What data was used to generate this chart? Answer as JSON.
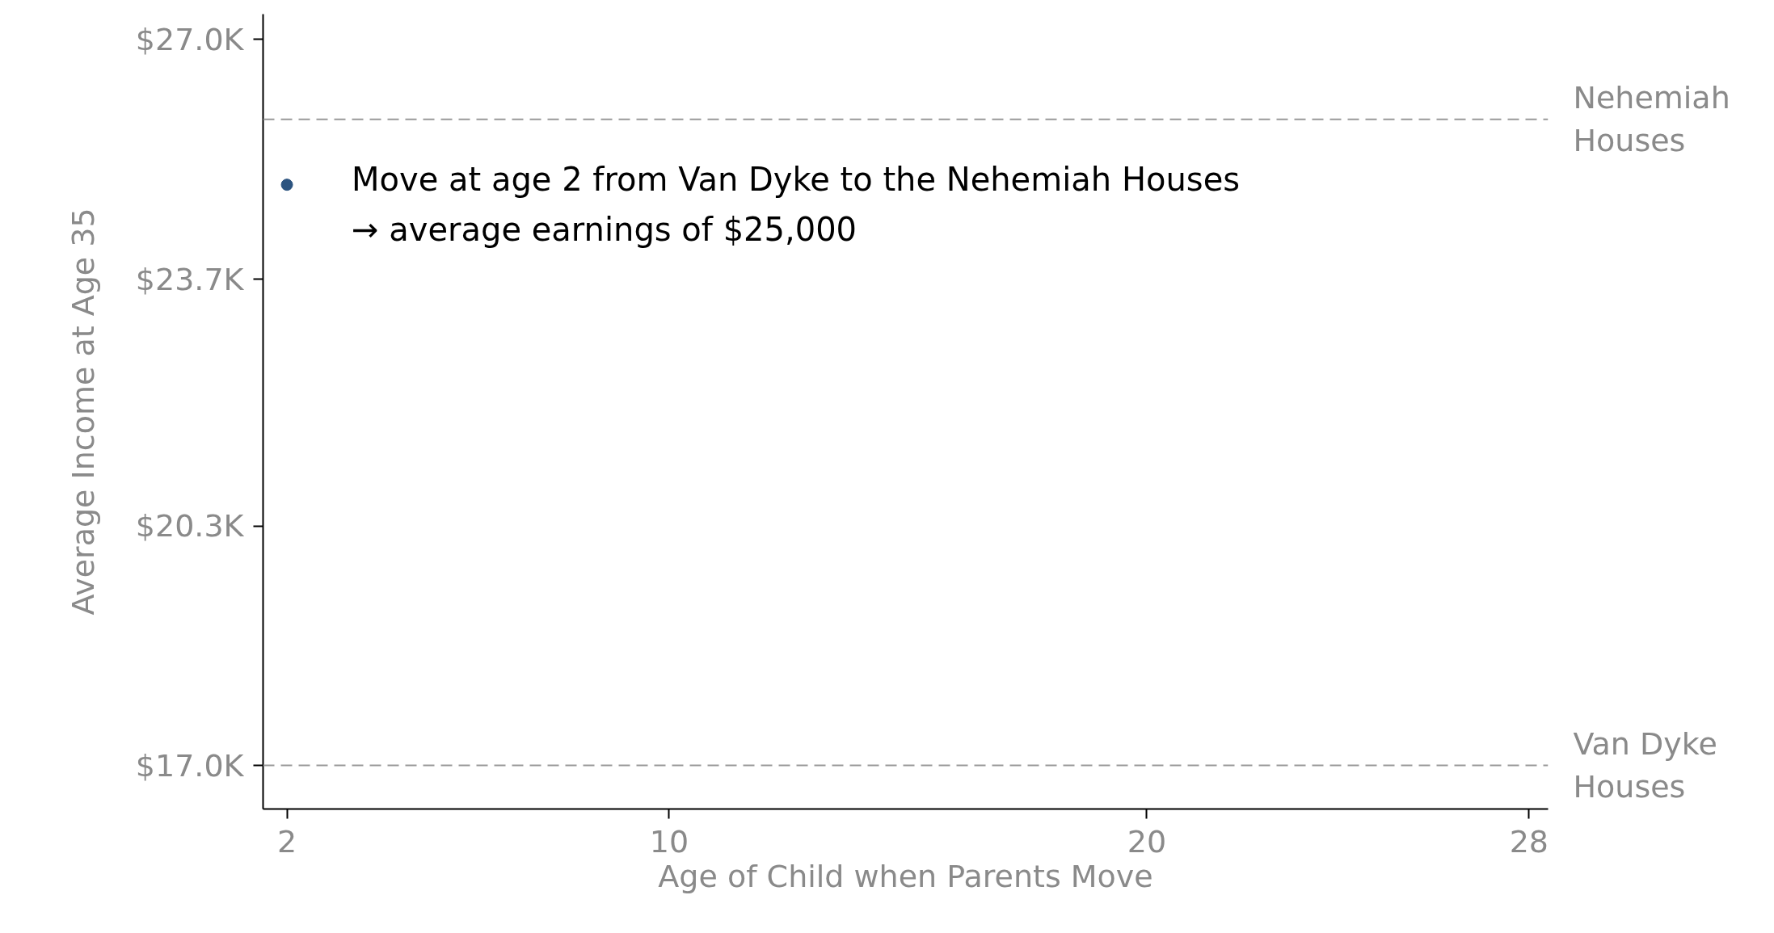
{
  "chart_data": {
    "type": "scatter",
    "xlabel": "Age of Child when Parents Move",
    "ylabel": "Average Income at Age 35",
    "x": [
      2
    ],
    "series": [
      {
        "color": "#2c5480",
        "values": [
          25000
        ]
      }
    ],
    "xlim": [
      1.5,
      28.4
    ],
    "xticks": [
      2,
      10,
      20,
      28
    ],
    "ylim": [
      16400,
      27350
    ],
    "yticks": [
      {
        "value": 17000,
        "label": "$17.0K"
      },
      {
        "value": 20300,
        "label": "$20.3K"
      },
      {
        "value": 23700,
        "label": "$23.7K"
      },
      {
        "value": 27000,
        "label": "$27.0K"
      }
    ],
    "ref_lines": [
      {
        "axis": "y",
        "value": 25900,
        "label": "Nehemiah Houses",
        "color": "#999999",
        "line_style": "dashed"
      },
      {
        "axis": "y",
        "value": 17000,
        "label": "Van Dyke Houses",
        "color": "#999999",
        "line_style": "dashed"
      }
    ],
    "annotations": [
      {
        "text": "Move at age 2 from Van Dyke to the Nehemiah Houses\n→ average earnings of $25,000",
        "x": 2,
        "y": 25000
      }
    ],
    "grid": false,
    "marker": "circle"
  }
}
